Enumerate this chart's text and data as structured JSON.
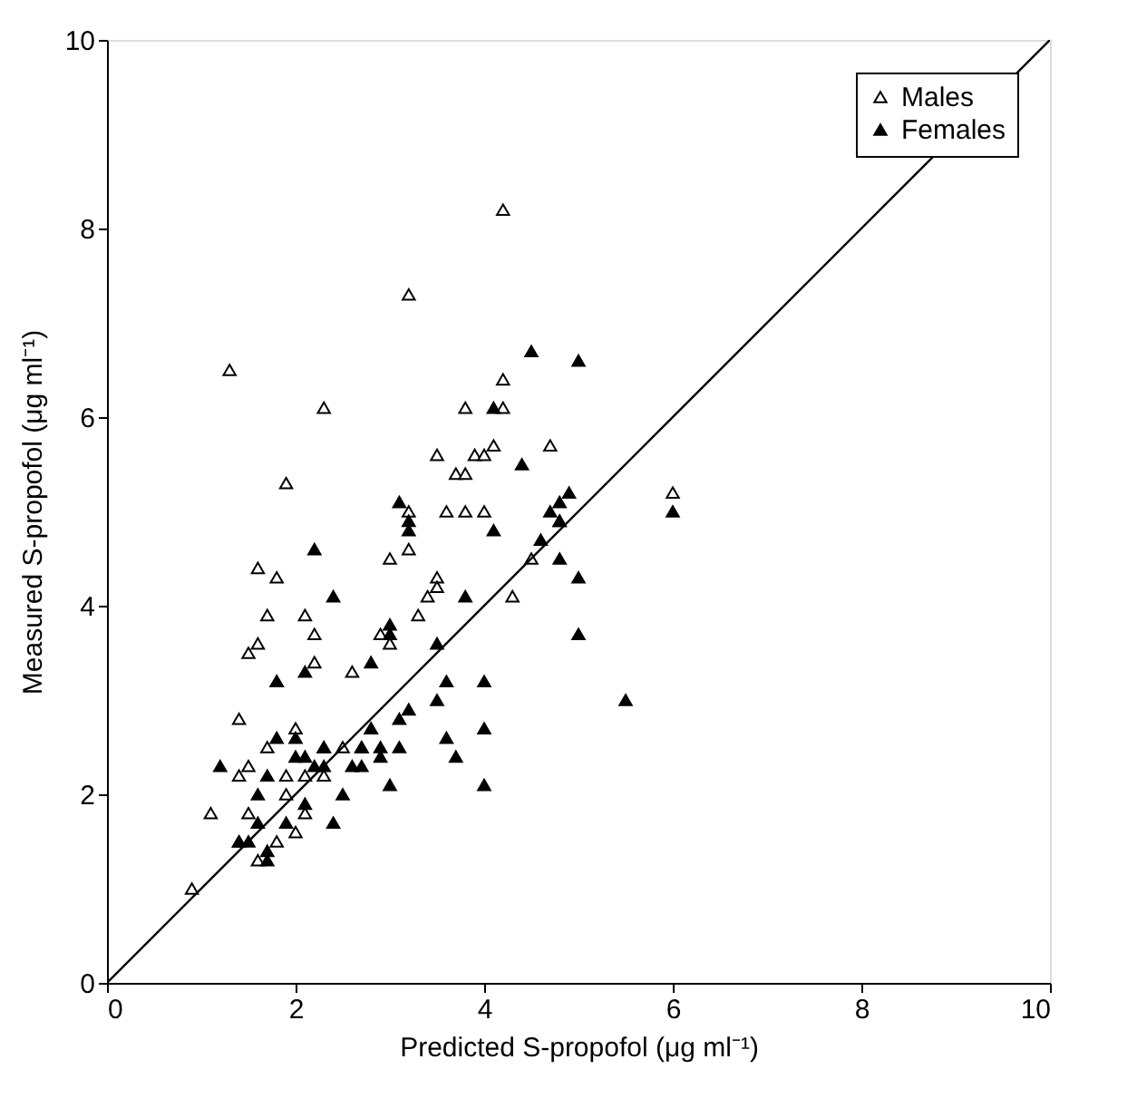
{
  "chart_data": {
    "type": "scatter",
    "xlabel": "Predicted S-propofol (μg ml⁻¹)",
    "ylabel": "Measured S-propofol (μg ml⁻¹)",
    "xlim": [
      0,
      10
    ],
    "ylim": [
      0,
      10
    ],
    "xticks": [
      0,
      2,
      4,
      6,
      8,
      10
    ],
    "yticks": [
      0,
      2,
      4,
      6,
      8,
      10
    ],
    "grid": false,
    "legend": "top right",
    "marker": "triangle",
    "series": [
      {
        "name": "Males",
        "color": "#ffffff",
        "x": [
          0.9,
          1.1,
          1.3,
          1.4,
          1.4,
          1.4,
          1.5,
          1.5,
          1.5,
          1.6,
          1.6,
          1.6,
          1.7,
          1.7,
          1.8,
          1.8,
          1.8,
          1.9,
          1.9,
          1.9,
          2.0,
          2.0,
          2.1,
          2.1,
          2.1,
          2.2,
          2.2,
          2.3,
          2.3,
          2.3,
          2.5,
          2.6,
          2.8,
          2.9,
          3.0,
          3.0,
          3.2,
          3.2,
          3.2,
          3.3,
          3.4,
          3.5,
          3.5,
          3.6,
          3.7,
          3.8,
          3.8,
          3.8,
          3.9,
          4.0,
          4.0,
          4.1,
          4.2,
          4.2,
          4.2,
          4.3,
          4.5,
          4.7,
          4.8,
          6.0,
          3.5,
          2.7
        ],
        "values": [
          1.0,
          1.8,
          6.5,
          1.5,
          2.2,
          2.8,
          1.8,
          2.3,
          3.5,
          1.3,
          3.6,
          4.4,
          2.5,
          3.9,
          1.5,
          4.3,
          3.2,
          2.0,
          2.2,
          5.3,
          2.7,
          1.6,
          1.8,
          3.9,
          2.2,
          3.4,
          3.7,
          2.2,
          2.5,
          6.1,
          2.5,
          3.3,
          2.7,
          3.7,
          3.6,
          4.5,
          5.0,
          7.3,
          4.6,
          3.9,
          4.1,
          4.3,
          5.6,
          5.0,
          5.4,
          5.4,
          6.1,
          5.0,
          5.6,
          5.0,
          5.6,
          5.7,
          6.1,
          6.4,
          8.2,
          4.1,
          4.5,
          5.7,
          4.9,
          5.2,
          4.2,
          2.5
        ]
      },
      {
        "name": "Females",
        "color": "#000000",
        "x": [
          1.2,
          1.4,
          1.5,
          1.6,
          1.6,
          1.7,
          1.7,
          1.7,
          1.8,
          1.8,
          1.9,
          2.0,
          2.0,
          2.1,
          2.1,
          2.1,
          2.2,
          2.2,
          2.3,
          2.3,
          2.4,
          2.4,
          2.5,
          2.6,
          2.7,
          2.7,
          2.8,
          2.8,
          2.9,
          2.9,
          3.0,
          3.0,
          3.0,
          3.1,
          3.1,
          3.1,
          3.2,
          3.2,
          3.2,
          3.5,
          3.5,
          3.6,
          3.6,
          3.7,
          3.8,
          4.0,
          4.0,
          4.0,
          4.1,
          4.1,
          4.4,
          4.5,
          4.6,
          4.7,
          4.8,
          4.8,
          4.9,
          5.0,
          5.0,
          5.0,
          5.5,
          6.0,
          4.8
        ],
        "values": [
          2.3,
          1.5,
          1.5,
          1.7,
          2.0,
          1.3,
          1.4,
          2.2,
          2.6,
          3.2,
          1.7,
          2.4,
          2.6,
          1.9,
          2.4,
          3.3,
          2.3,
          4.6,
          2.3,
          2.5,
          1.7,
          4.1,
          2.0,
          2.3,
          2.3,
          2.5,
          2.7,
          3.4,
          2.4,
          2.5,
          2.1,
          3.7,
          3.8,
          2.5,
          5.1,
          2.8,
          4.9,
          2.9,
          4.8,
          3.0,
          3.6,
          3.2,
          2.6,
          2.4,
          4.1,
          2.7,
          3.2,
          2.1,
          4.8,
          6.1,
          5.5,
          6.7,
          4.7,
          5.0,
          5.1,
          4.9,
          5.2,
          3.7,
          4.3,
          6.6,
          3.0,
          5.0,
          4.5
        ]
      },
      {
        "type": "line",
        "marker": "none",
        "color": "#000000",
        "x": [
          0,
          10
        ],
        "values": [
          0,
          10
        ]
      }
    ]
  }
}
